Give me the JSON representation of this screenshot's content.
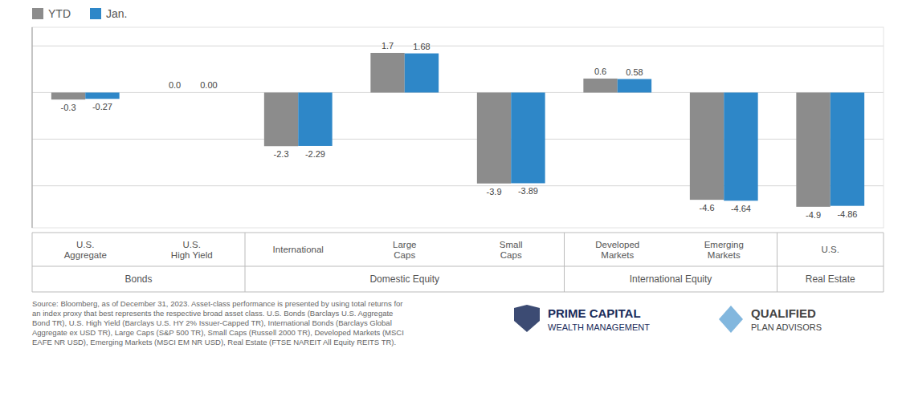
{
  "chart_data": {
    "type": "bar",
    "categories": [
      "U.S.\nAggregate",
      "U.S.\nHigh Yield",
      "International",
      "Large\nCaps",
      "Small\nCaps",
      "Developed\nMarkets",
      "Emerging\nMarkets",
      "U.S."
    ],
    "series": [
      {
        "name": "YTD",
        "color": "#8c8c8c",
        "values": [
          -0.3,
          0.0,
          -2.3,
          1.7,
          -3.9,
          0.6,
          -4.6,
          -4.9
        ],
        "value_labels": [
          "-0.3",
          "0.0",
          "-2.3",
          "1.7",
          "-3.9",
          "0.6",
          "-4.6",
          "-4.9"
        ]
      },
      {
        "name": "Jan.",
        "color": "#2e87c8",
        "values": [
          -0.27,
          0.0,
          -2.29,
          1.68,
          -3.89,
          0.58,
          -4.64,
          -4.86
        ],
        "value_labels": [
          "-0.27",
          "0.00",
          "-2.29",
          "1.68",
          "-3.89",
          "0.58",
          "-4.64",
          "-4.86"
        ]
      }
    ],
    "groups": [
      {
        "label": "Bonds",
        "span": [
          0,
          1
        ]
      },
      {
        "label": "Domestic Equity",
        "span": [
          2,
          4
        ]
      },
      {
        "label": "International Equity",
        "span": [
          5,
          6
        ]
      },
      {
        "label": "Real Estate",
        "span": [
          7,
          7
        ]
      }
    ],
    "ylim": [
      -5.8,
      2.8
    ],
    "yticks": [
      -4,
      -2,
      0,
      2
    ],
    "grid": true,
    "tick_labels": "x",
    "data_labels": true,
    "legend": "upper left",
    "source": "Source: Bloomberg, as of December 31, 2023. Asset-class performance is presented by using total returns for\nan index proxy that best represents the respective broad asset class. U.S. Bonds (Barclays U.S. Aggregate\nBond TR), U.S. High Yield (Barclays U.S. HY 2% Issuer-Capped TR), International Bonds (Barclays Global\nAggregate ex USD TR), Large Caps (S&P 500 TR), Small Caps (Russell 2000 TR), Developed Markets (MSCI\nEAFE NR USD), Emerging Markets (MSCI EM NR USD), Real Estate (FTSE NAREIT All Equity REITS TR).",
    "annotations": [
      "PRIME CAPITAL",
      "WEALTH MANAGEMENT",
      "QUALIFIED",
      "PLAN ADVISORS"
    ]
  }
}
